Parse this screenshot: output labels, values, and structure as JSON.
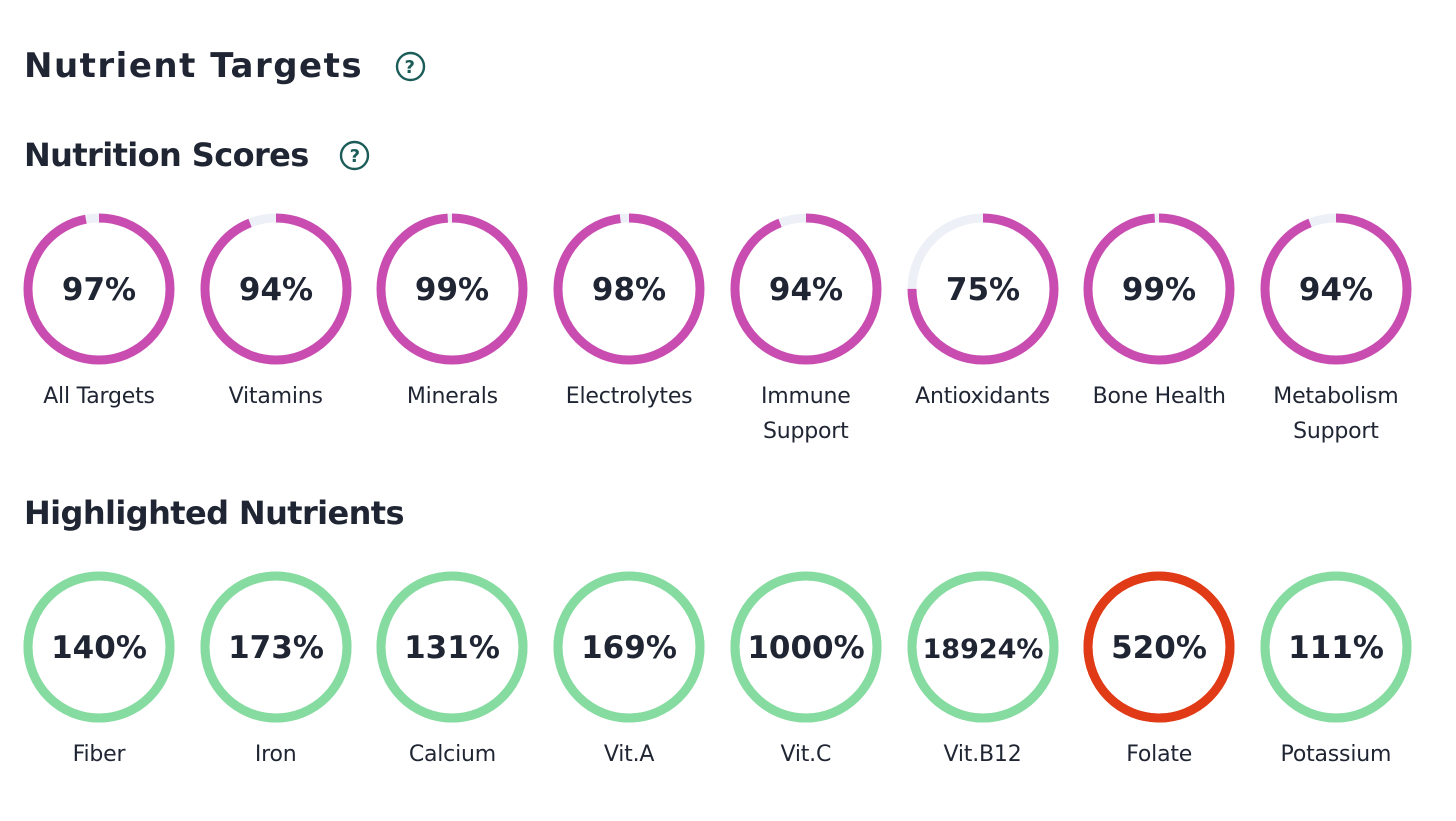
{
  "header": {
    "title": "Nutrient Targets"
  },
  "nutrition_scores": {
    "title": "Nutrition Scores",
    "progress_color": "#c94db0",
    "track_color": "#eef0f7",
    "items": [
      {
        "label": [
          "All Targets"
        ],
        "value_text": "97%",
        "percent": 97
      },
      {
        "label": [
          "Vitamins"
        ],
        "value_text": "94%",
        "percent": 94
      },
      {
        "label": [
          "Minerals"
        ],
        "value_text": "99%",
        "percent": 99
      },
      {
        "label": [
          "Electrolytes"
        ],
        "value_text": "98%",
        "percent": 98
      },
      {
        "label": [
          "Immune",
          "Support"
        ],
        "value_text": "94%",
        "percent": 94
      },
      {
        "label": [
          "Antioxidants"
        ],
        "value_text": "75%",
        "percent": 75
      },
      {
        "label": [
          "Bone Health"
        ],
        "value_text": "99%",
        "percent": 99
      },
      {
        "label": [
          "Metabolism",
          "Support"
        ],
        "value_text": "94%",
        "percent": 94
      }
    ]
  },
  "highlighted_nutrients": {
    "title": "Highlighted Nutrients",
    "good_color": "#86dba0",
    "warning_color": "#e03a17",
    "items": [
      {
        "label": [
          "Fiber"
        ],
        "value_text": "140%",
        "status": "good"
      },
      {
        "label": [
          "Iron"
        ],
        "value_text": "173%",
        "status": "good"
      },
      {
        "label": [
          "Calcium"
        ],
        "value_text": "131%",
        "status": "good"
      },
      {
        "label": [
          "Vit.A"
        ],
        "value_text": "169%",
        "status": "good"
      },
      {
        "label": [
          "Vit.C"
        ],
        "value_text": "1000%",
        "status": "good"
      },
      {
        "label": [
          "Vit.B12"
        ],
        "value_text": "18924%",
        "status": "good"
      },
      {
        "label": [
          "Folate"
        ],
        "value_text": "520%",
        "status": "warning"
      },
      {
        "label": [
          "Potassium"
        ],
        "value_text": "111%",
        "status": "good"
      }
    ]
  },
  "icons": {
    "help": "help-circle-icon"
  }
}
